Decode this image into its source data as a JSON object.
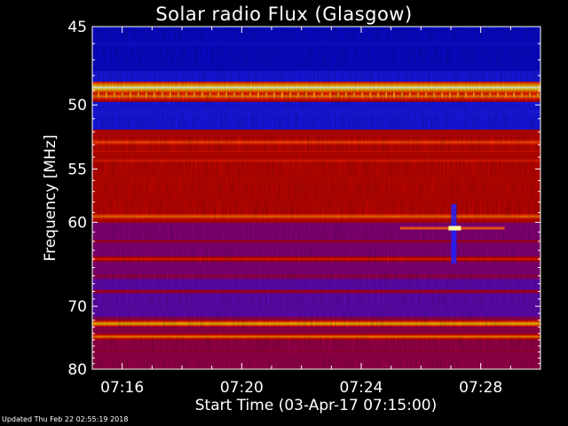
{
  "chart_data": {
    "type": "heatmap",
    "title": "Solar radio Flux (Glasgow)",
    "xlabel": "Start Time (03-Apr-17 07:15:00)",
    "ylabel": "Frequency [MHz]",
    "x_ticks": [
      "07:16",
      "07:20",
      "07:24",
      "07:28"
    ],
    "x_tick_minutes": [
      1,
      5,
      9,
      13
    ],
    "xlim_minutes": [
      0,
      15
    ],
    "y_ticks": [
      45,
      50,
      55,
      60,
      70,
      80
    ],
    "ylim": [
      45,
      80
    ],
    "y_scale": "reciprocal",
    "colormap": [
      "#000010",
      "#0000c8",
      "#2020ff",
      "#8000a0",
      "#c00000",
      "#ff2000",
      "#ff8000",
      "#ffd000",
      "#ffffff"
    ],
    "bands": [
      {
        "freq": 46.0,
        "level": 0.2
      },
      {
        "freq": 48.8,
        "level": 1.0
      },
      {
        "freq": 49.4,
        "level": 0.75
      },
      {
        "freq": 50.5,
        "level": 0.25
      },
      {
        "freq": 51.4,
        "level": 0.05
      },
      {
        "freq": 52.8,
        "level": 0.7
      },
      {
        "freq": 53.5,
        "level": 0.58
      },
      {
        "freq": 54.3,
        "level": 0.62
      },
      {
        "freq": 56.0,
        "level": 0.55
      },
      {
        "freq": 59.4,
        "level": 0.75
      },
      {
        "freq": 62.0,
        "level": 0.5
      },
      {
        "freq": 64.0,
        "level": 0.62
      },
      {
        "freq": 66.0,
        "level": 0.48
      },
      {
        "freq": 68.0,
        "level": 0.5
      },
      {
        "freq": 72.5,
        "level": 0.88
      },
      {
        "freq": 74.5,
        "level": 0.78
      },
      {
        "freq": 77.0,
        "level": 0.48
      }
    ],
    "burst": {
      "minute_start": 10.3,
      "minute_end": 13.8,
      "freq": 60.6,
      "peak_minute": 12.1
    }
  },
  "footer": "Updated Thu Feb 22 02:55:19 2018"
}
